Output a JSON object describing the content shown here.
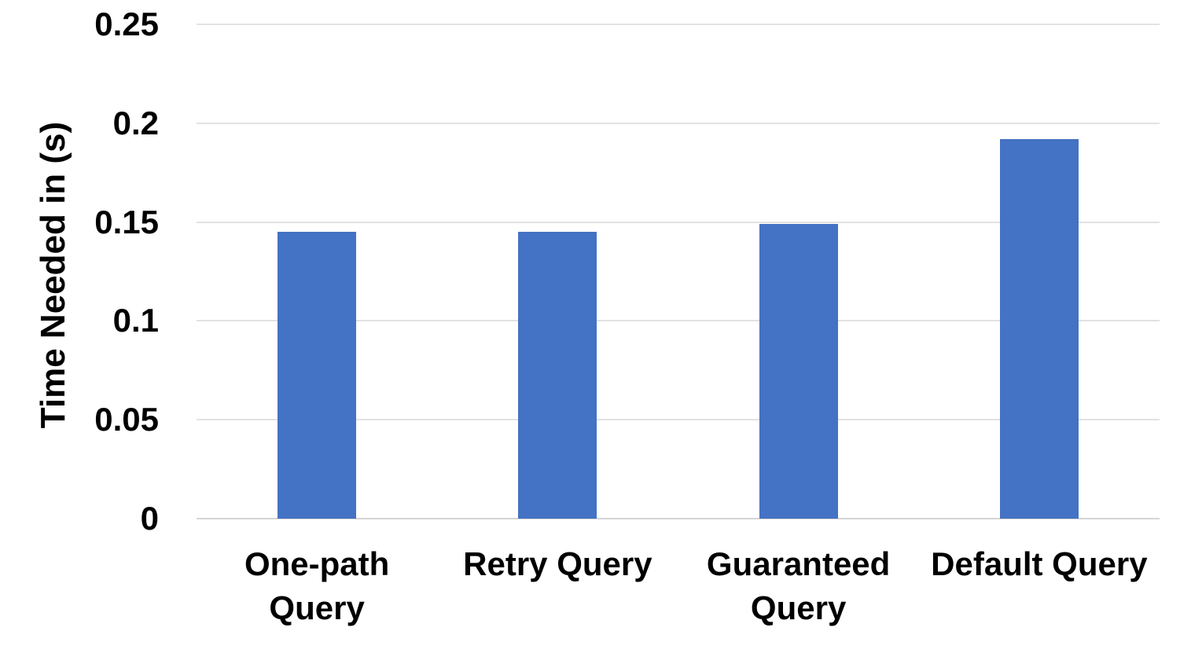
{
  "chart_data": {
    "type": "bar",
    "title": "",
    "xlabel": "",
    "ylabel": "Time Needed in (s)",
    "categories": [
      "One-path\nQuery",
      "Retry Query",
      "Guaranteed\nQuery",
      "Default Query"
    ],
    "values": [
      0.145,
      0.145,
      0.149,
      0.192
    ],
    "ylim": [
      0,
      0.25
    ],
    "yticks": [
      {
        "value": 0,
        "label": "0"
      },
      {
        "value": 0.05,
        "label": "0.05"
      },
      {
        "value": 0.1,
        "label": "0.1"
      },
      {
        "value": 0.15,
        "label": "0.15"
      },
      {
        "value": 0.2,
        "label": "0.2"
      },
      {
        "value": 0.25,
        "label": "0.25"
      }
    ],
    "grid": "horizontal",
    "legend": "none",
    "colors": {
      "bar": "#4472C4",
      "gridline": "#e2e2e2",
      "axis_line": "#d5d5d5",
      "text": "#000000"
    }
  }
}
